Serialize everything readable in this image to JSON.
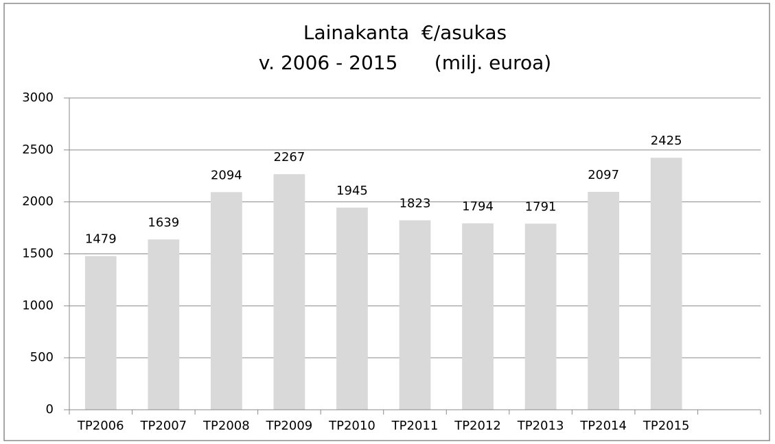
{
  "chart_data": {
    "type": "bar",
    "title": [
      "Lainakanta  €/asukas",
      "v. 2006 - 2015      (milj. euroa)"
    ],
    "categories": [
      "TP2006",
      "TP2007",
      "TP2008",
      "TP2009",
      "TP2010",
      "TP2011",
      "TP2012",
      "TP2013",
      "TP2014",
      "TP2015",
      null
    ],
    "values": [
      1479,
      1639,
      2094,
      2267,
      1945,
      1823,
      1794,
      1791,
      2097,
      2425,
      null
    ],
    "color": "#d9d9d9",
    "ylim": [
      0,
      3000
    ],
    "yticks": [
      0,
      500,
      1000,
      1500,
      2000,
      2500,
      3000
    ],
    "grid": true
  }
}
